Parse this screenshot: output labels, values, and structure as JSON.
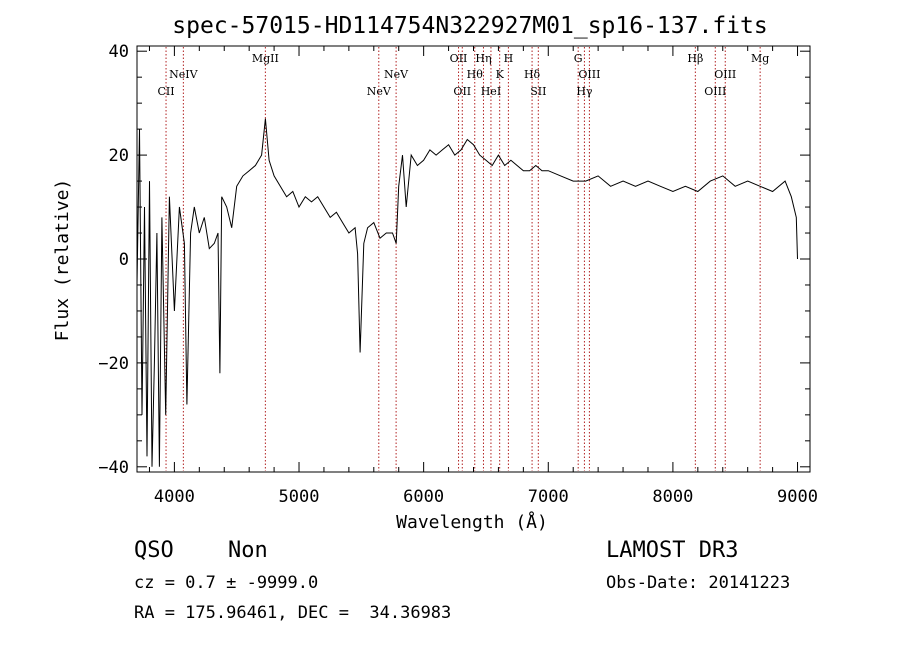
{
  "chart_data": {
    "type": "line",
    "title": "spec-57015-HD114754N322927M01_sp16-137.fits",
    "xlabel": "Wavelength (Å)",
    "ylabel": "Flux (relative)",
    "xlim": [
      3700,
      9100
    ],
    "ylim": [
      -41,
      41
    ],
    "x_ticks": [
      4000,
      5000,
      6000,
      7000,
      8000,
      9000
    ],
    "y_ticks": [
      -40,
      -20,
      0,
      20,
      40
    ],
    "grid": false,
    "series": [
      {
        "x": [
          3700,
          3720,
          3740,
          3760,
          3780,
          3800,
          3820,
          3840,
          3860,
          3880,
          3900,
          3930,
          3960,
          4000,
          4040,
          4080,
          4100,
          4130,
          4160,
          4200,
          4240,
          4280,
          4320,
          4350,
          4365,
          4380,
          4420,
          4460,
          4500,
          4550,
          4600,
          4650,
          4700,
          4730,
          4760,
          4800,
          4850,
          4900,
          4950,
          5000,
          5050,
          5100,
          5150,
          5200,
          5250,
          5300,
          5350,
          5400,
          5450,
          5470,
          5490,
          5520,
          5550,
          5600,
          5650,
          5700,
          5750,
          5780,
          5800,
          5830,
          5860,
          5900,
          5950,
          6000,
          6050,
          6100,
          6150,
          6200,
          6250,
          6300,
          6350,
          6400,
          6450,
          6500,
          6550,
          6600,
          6650,
          6700,
          6750,
          6800,
          6850,
          6900,
          6950,
          7000,
          7100,
          7200,
          7300,
          7400,
          7500,
          7600,
          7700,
          7800,
          7900,
          8000,
          8100,
          8200,
          8300,
          8400,
          8500,
          8600,
          8700,
          8800,
          8900,
          8950,
          8990,
          9000
        ],
        "y": [
          -5,
          25,
          -30,
          10,
          -38,
          15,
          -40,
          -20,
          5,
          -40,
          8,
          -30,
          12,
          -10,
          10,
          3,
          -28,
          5,
          10,
          5,
          8,
          2,
          3,
          5,
          -22,
          12,
          10,
          6,
          14,
          16,
          17,
          18,
          20,
          27,
          19,
          16,
          14,
          12,
          13,
          10,
          12,
          11,
          12,
          10,
          8,
          9,
          7,
          5,
          6,
          1,
          -18,
          3,
          6,
          7,
          4,
          5,
          5,
          3,
          14,
          20,
          10,
          20,
          18,
          19,
          21,
          20,
          21,
          22,
          20,
          21,
          23,
          22,
          20,
          19,
          18,
          20,
          18,
          19,
          18,
          17,
          17,
          18,
          17,
          17,
          16,
          15,
          15,
          16,
          14,
          15,
          14,
          15,
          14,
          13,
          14,
          13,
          15,
          16,
          14,
          15,
          14,
          13,
          15,
          12,
          8,
          0
        ]
      }
    ],
    "lines": [
      {
        "name": "CII",
        "x": 3933,
        "row": 2
      },
      {
        "name": "NeIV",
        "x": 4072,
        "row": 1
      },
      {
        "name": "MgII",
        "x": 4730,
        "row": 0
      },
      {
        "name": "NeV",
        "x": 5640,
        "row": 2
      },
      {
        "name": "NeV",
        "x": 5779,
        "row": 1
      },
      {
        "name": "OII",
        "x": 6280,
        "row": 0
      },
      {
        "name": "OII",
        "x": 6310,
        "row": 2
      },
      {
        "name": "Hθ",
        "x": 6410,
        "row": 1
      },
      {
        "name": "Hη",
        "x": 6480,
        "row": 0
      },
      {
        "name": "HeI",
        "x": 6540,
        "row": 2
      },
      {
        "name": "K",
        "x": 6610,
        "row": 1
      },
      {
        "name": "H",
        "x": 6680,
        "row": 0
      },
      {
        "name": "Hδ",
        "x": 6870,
        "row": 1
      },
      {
        "name": "SII",
        "x": 6920,
        "row": 2
      },
      {
        "name": "G",
        "x": 7240,
        "row": 0
      },
      {
        "name": "Hγ",
        "x": 7290,
        "row": 2
      },
      {
        "name": "OIII",
        "x": 7330,
        "row": 1
      },
      {
        "name": "Hβ",
        "x": 8180,
        "row": 0
      },
      {
        "name": "OIII",
        "x": 8340,
        "row": 2
      },
      {
        "name": "OIII",
        "x": 8420,
        "row": 1
      },
      {
        "name": "Mg",
        "x": 8700,
        "row": 0
      }
    ],
    "line_color": "#000000",
    "marker_color": "#b22222"
  },
  "info": {
    "class": "QSO",
    "subclass": "Non",
    "survey": "LAMOST DR3",
    "cz": "cz = 0.7 ± -9999.0",
    "obs_date": "Obs-Date: 20141223",
    "radec": "RA = 175.96461, DEC =  34.36983"
  }
}
